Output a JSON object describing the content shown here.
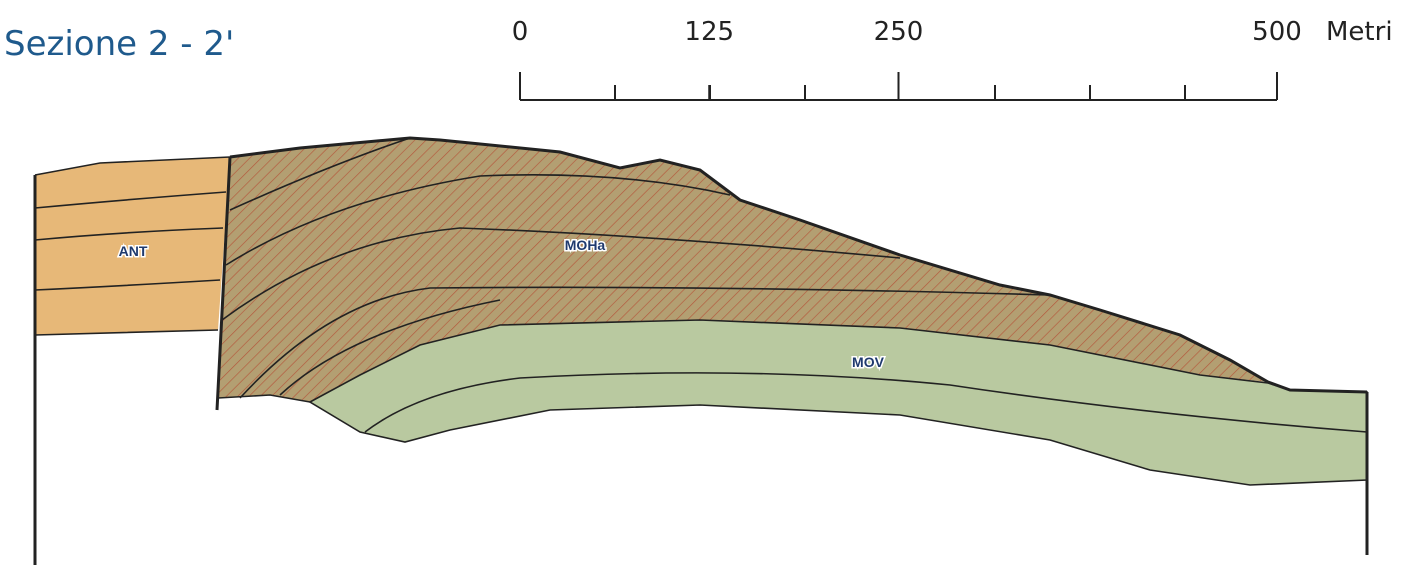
{
  "title": "Sezione 2 - 2'",
  "scale": {
    "ticks": [
      0,
      125,
      250,
      500
    ],
    "unit": "Metri"
  },
  "units": [
    {
      "label": "ANT"
    },
    {
      "label": "MOHa"
    },
    {
      "label": "MOV"
    }
  ]
}
